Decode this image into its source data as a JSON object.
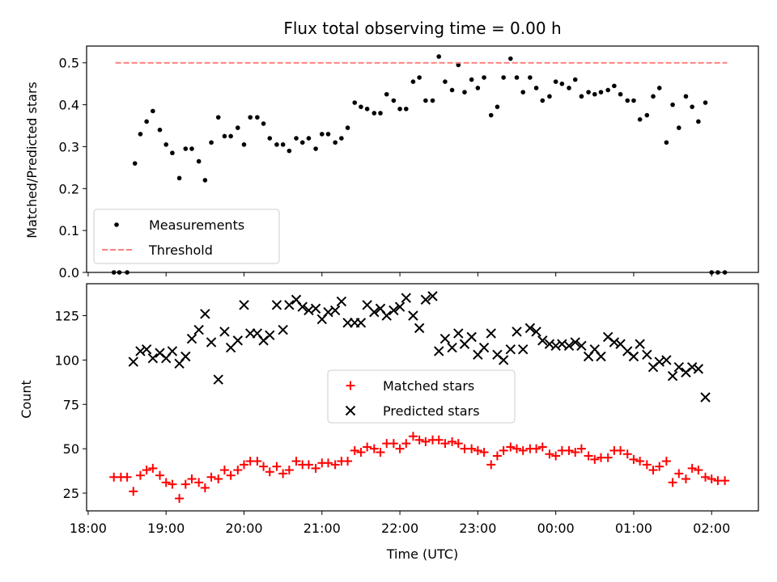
{
  "figure": {
    "title": "Flux total observing time = 0.00 h",
    "xlabel": "Time (UTC)",
    "x_tick_labels": [
      "18:00",
      "19:00",
      "20:00",
      "21:00",
      "22:00",
      "23:00",
      "00:00",
      "01:00",
      "02:00"
    ],
    "x_tick_hours": [
      18,
      19,
      20,
      21,
      22,
      23,
      24,
      25,
      26
    ],
    "xlim_hours": [
      17.98,
      26.6
    ]
  },
  "chart_data": [
    {
      "type": "scatter",
      "panel": "top",
      "ylabel": "Matched/Predicted stars",
      "ylim": [
        0,
        0.54
      ],
      "y_ticks": [
        0.0,
        0.1,
        0.2,
        0.3,
        0.4,
        0.5
      ],
      "y_tick_labels": [
        "0.0",
        "0.1",
        "0.2",
        "0.3",
        "0.4",
        "0.5"
      ],
      "legend_position": "lower-left",
      "legend": [
        "Measurements",
        "Threshold"
      ],
      "series": [
        {
          "name": "Measurements",
          "marker": "dot",
          "color": "#000000",
          "x": [
            18.33,
            18.4,
            18.5,
            18.6,
            18.67,
            18.75,
            18.83,
            18.92,
            19.0,
            19.08,
            19.17,
            19.25,
            19.33,
            19.42,
            19.5,
            19.58,
            19.67,
            19.75,
            19.83,
            19.92,
            20.0,
            20.08,
            20.17,
            20.25,
            20.33,
            20.42,
            20.5,
            20.58,
            20.67,
            20.75,
            20.83,
            20.92,
            21.0,
            21.08,
            21.17,
            21.25,
            21.33,
            21.42,
            21.5,
            21.58,
            21.67,
            21.75,
            21.83,
            21.92,
            22.0,
            22.08,
            22.17,
            22.25,
            22.33,
            22.42,
            22.5,
            22.58,
            22.67,
            22.75,
            22.83,
            22.92,
            23.0,
            23.08,
            23.17,
            23.25,
            23.33,
            23.42,
            23.5,
            23.58,
            23.67,
            23.75,
            23.83,
            23.92,
            24.0,
            24.08,
            24.17,
            24.25,
            24.33,
            24.42,
            24.5,
            24.58,
            24.67,
            24.75,
            24.83,
            24.92,
            25.0,
            25.08,
            25.17,
            25.25,
            25.33,
            25.42,
            25.5,
            25.58,
            25.67,
            25.75,
            25.83,
            25.92,
            26.0,
            26.08,
            26.17
          ],
          "y": [
            0,
            0,
            0,
            0.26,
            0.33,
            0.36,
            0.385,
            0.34,
            0.305,
            0.285,
            0.225,
            0.295,
            0.295,
            0.265,
            0.22,
            0.31,
            0.37,
            0.325,
            0.325,
            0.345,
            0.305,
            0.37,
            0.37,
            0.355,
            0.32,
            0.305,
            0.305,
            0.29,
            0.32,
            0.31,
            0.32,
            0.295,
            0.33,
            0.33,
            0.31,
            0.32,
            0.345,
            0.405,
            0.395,
            0.39,
            0.38,
            0.38,
            0.425,
            0.41,
            0.39,
            0.39,
            0.455,
            0.465,
            0.41,
            0.41,
            0.515,
            0.455,
            0.435,
            0.495,
            0.43,
            0.46,
            0.44,
            0.465,
            0.375,
            0.395,
            0.465,
            0.51,
            0.465,
            0.43,
            0.465,
            0.44,
            0.41,
            0.42,
            0.455,
            0.45,
            0.44,
            0.46,
            0.42,
            0.43,
            0.425,
            0.43,
            0.435,
            0.445,
            0.425,
            0.41,
            0.41,
            0.365,
            0.375,
            0.42,
            0.44,
            0.31,
            0.4,
            0.345,
            0.42,
            0.395,
            0.36,
            0.405,
            0,
            0,
            0
          ]
        },
        {
          "name": "Threshold",
          "style": "dashed",
          "color": "#ff7f7f",
          "x": [
            18.35,
            26.2
          ],
          "y": [
            0.5,
            0.5
          ]
        }
      ]
    },
    {
      "type": "scatter",
      "panel": "bottom",
      "ylabel": "Count",
      "ylim": [
        15,
        143
      ],
      "y_ticks": [
        25,
        50,
        75,
        100,
        125
      ],
      "y_tick_labels": [
        "25",
        "50",
        "75",
        "100",
        "125"
      ],
      "legend_position": "center",
      "legend": [
        "Matched stars",
        "Predicted stars"
      ],
      "series": [
        {
          "name": "Matched stars",
          "marker": "plus",
          "color": "#ff0000",
          "x": [
            18.33,
            18.42,
            18.5,
            18.58,
            18.67,
            18.75,
            18.83,
            18.92,
            19.0,
            19.08,
            19.17,
            19.25,
            19.33,
            19.42,
            19.5,
            19.58,
            19.67,
            19.75,
            19.83,
            19.92,
            20.0,
            20.08,
            20.17,
            20.25,
            20.33,
            20.42,
            20.5,
            20.58,
            20.67,
            20.75,
            20.83,
            20.92,
            21.0,
            21.08,
            21.17,
            21.25,
            21.33,
            21.42,
            21.5,
            21.58,
            21.67,
            21.75,
            21.83,
            21.92,
            22.0,
            22.08,
            22.17,
            22.25,
            22.33,
            22.42,
            22.5,
            22.58,
            22.67,
            22.75,
            22.83,
            22.92,
            23.0,
            23.08,
            23.17,
            23.25,
            23.33,
            23.42,
            23.5,
            23.58,
            23.67,
            23.75,
            23.83,
            23.92,
            24.0,
            24.08,
            24.17,
            24.25,
            24.33,
            24.42,
            24.5,
            24.58,
            24.67,
            24.75,
            24.83,
            24.92,
            25.0,
            25.08,
            25.17,
            25.25,
            25.33,
            25.42,
            25.5,
            25.58,
            25.67,
            25.75,
            25.83,
            25.92,
            26.0,
            26.08,
            26.17
          ],
          "y": [
            34,
            34,
            34,
            26,
            35,
            38,
            39,
            35,
            31,
            30,
            22,
            30,
            33,
            31,
            28,
            34,
            33,
            38,
            35,
            38,
            41,
            43,
            43,
            40,
            37,
            40,
            36,
            38,
            43,
            41,
            41,
            39,
            42,
            42,
            41,
            43,
            43,
            49,
            48,
            51,
            50,
            48,
            53,
            53,
            50,
            53,
            57,
            55,
            54,
            55,
            55,
            53,
            54,
            53,
            50,
            50,
            49,
            48,
            41,
            46,
            49,
            51,
            50,
            49,
            50,
            50,
            51,
            47,
            46,
            49,
            49,
            48,
            50,
            46,
            44,
            45,
            45,
            49,
            49,
            47,
            44,
            43,
            41,
            38,
            40,
            43,
            31,
            36,
            33,
            39,
            38,
            34,
            33,
            32,
            32
          ]
        },
        {
          "name": "Predicted stars",
          "marker": "x",
          "color": "#000000",
          "x": [
            18.58,
            18.67,
            18.75,
            18.83,
            18.92,
            19.0,
            19.08,
            19.17,
            19.25,
            19.33,
            19.42,
            19.5,
            19.58,
            19.67,
            19.75,
            19.83,
            19.92,
            20.0,
            20.08,
            20.17,
            20.25,
            20.33,
            20.42,
            20.5,
            20.58,
            20.67,
            20.75,
            20.83,
            20.92,
            21.0,
            21.08,
            21.17,
            21.25,
            21.33,
            21.42,
            21.5,
            21.58,
            21.67,
            21.75,
            21.83,
            21.92,
            22.0,
            22.08,
            22.17,
            22.25,
            22.33,
            22.42,
            22.5,
            22.58,
            22.67,
            22.75,
            22.83,
            22.92,
            23.0,
            23.08,
            23.17,
            23.25,
            23.33,
            23.42,
            23.5,
            23.58,
            23.67,
            23.75,
            23.83,
            23.92,
            24.0,
            24.08,
            24.17,
            24.25,
            24.33,
            24.42,
            24.5,
            24.58,
            24.67,
            24.75,
            24.83,
            24.92,
            25.0,
            25.08,
            25.17,
            25.25,
            25.33,
            25.42,
            25.5,
            25.58,
            25.67,
            25.75,
            25.83,
            25.92
          ],
          "y": [
            99,
            105,
            106,
            101,
            104,
            101,
            105,
            98,
            102,
            112,
            117,
            126,
            110,
            89,
            116,
            107,
            111,
            131,
            115,
            115,
            111,
            114,
            131,
            117,
            131,
            134,
            130,
            128,
            129,
            123,
            127,
            128,
            133,
            121,
            121,
            121,
            131,
            127,
            129,
            125,
            128,
            130,
            135,
            125,
            118,
            134,
            136,
            105,
            112,
            107,
            115,
            109,
            113,
            103,
            107,
            115,
            103,
            100,
            106,
            116,
            106,
            118,
            116,
            111,
            109,
            108,
            109,
            108,
            110,
            108,
            102,
            106,
            102,
            113,
            110,
            109,
            105,
            102,
            109,
            103,
            96,
            99,
            100,
            91,
            96,
            93,
            96,
            95,
            79
          ]
        }
      ]
    }
  ]
}
